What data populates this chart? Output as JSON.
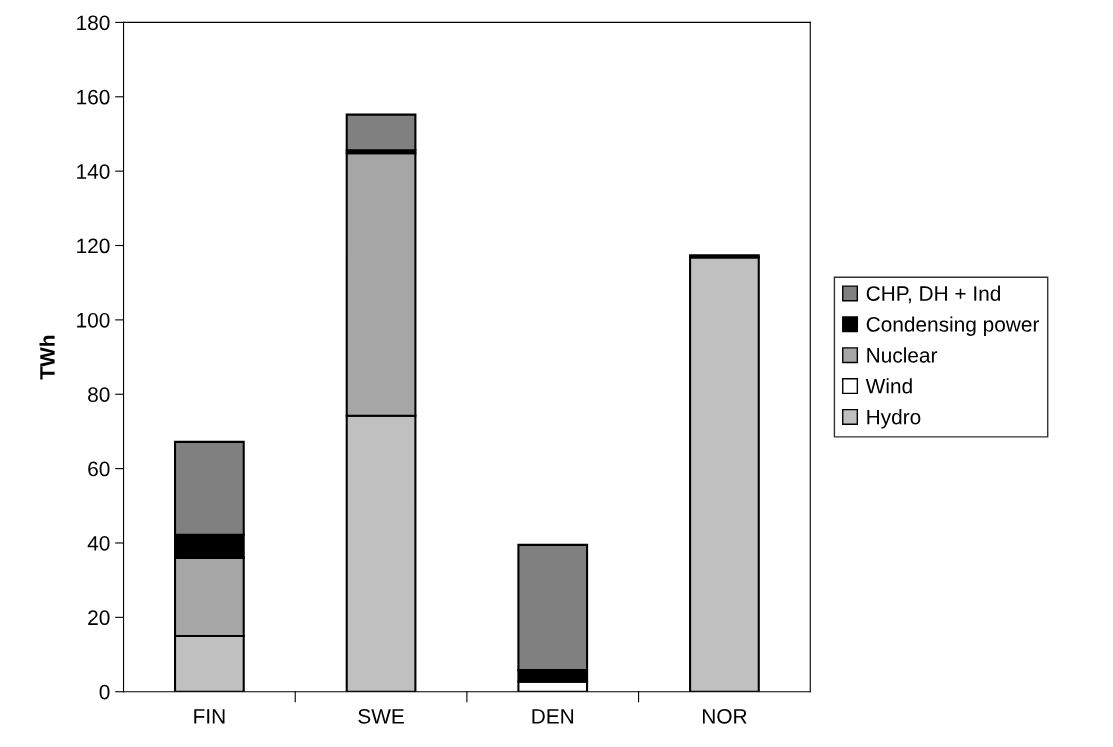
{
  "chart_data": {
    "type": "bar",
    "stacked": true,
    "ylabel": "TWh",
    "categories": [
      "FIN",
      "SWE",
      "DEN",
      "NOR"
    ],
    "series": [
      {
        "name": "Hydro",
        "color": "#c0c0c0",
        "values": [
          15,
          74.2,
          null,
          116.8
        ]
      },
      {
        "name": "Wind",
        "color": "#ffffff",
        "values": [
          null,
          null,
          2.7,
          null
        ]
      },
      {
        "name": "Nuclear",
        "color": "#a6a6a6",
        "values": [
          21,
          70.6,
          null,
          null
        ]
      },
      {
        "name": "Condensing power",
        "color": "#000000",
        "values": [
          6.2,
          0.8,
          3.1,
          0.6
        ]
      },
      {
        "name": "CHP, DH + Ind",
        "color": "#808080",
        "values": [
          25,
          9.6,
          33.7,
          null
        ]
      }
    ],
    "ylim": [
      0,
      180
    ],
    "yticks": [
      0,
      20,
      40,
      60,
      80,
      100,
      120,
      140,
      160,
      180
    ],
    "grid": false,
    "legend": "right"
  }
}
